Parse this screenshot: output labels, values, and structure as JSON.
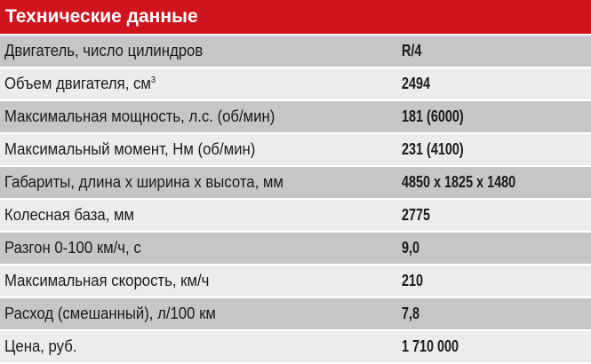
{
  "title": "Технические данные",
  "colors": {
    "header": "#d0141e",
    "row_dark": "#c6c6c6",
    "row_light": "#ececec"
  },
  "rows": [
    {
      "label": "Двигатель, число цилиндров",
      "value": "R/4"
    },
    {
      "label": "Объем двигателя, см",
      "sup": "3",
      "value": "2494"
    },
    {
      "label": "Максимальная мощность, л.с. (об/мин)",
      "value": "181 (6000)"
    },
    {
      "label": "Максимальный момент, Нм (об/мин)",
      "value": "231 (4100)"
    },
    {
      "label": "Габариты, длина х ширина х высота, мм",
      "value": "4850 x 1825 x 1480"
    },
    {
      "label": "Колесная база, мм",
      "value": "2775"
    },
    {
      "label": "Разгон 0-100 км/ч, с",
      "value": "9,0"
    },
    {
      "label": "Максимальная скорость, км/ч",
      "value": "210"
    },
    {
      "label": "Расход (смешанный), л/100 км",
      "value": "7,8"
    },
    {
      "label": "Цена, руб.",
      "value": "1 710 000"
    }
  ]
}
